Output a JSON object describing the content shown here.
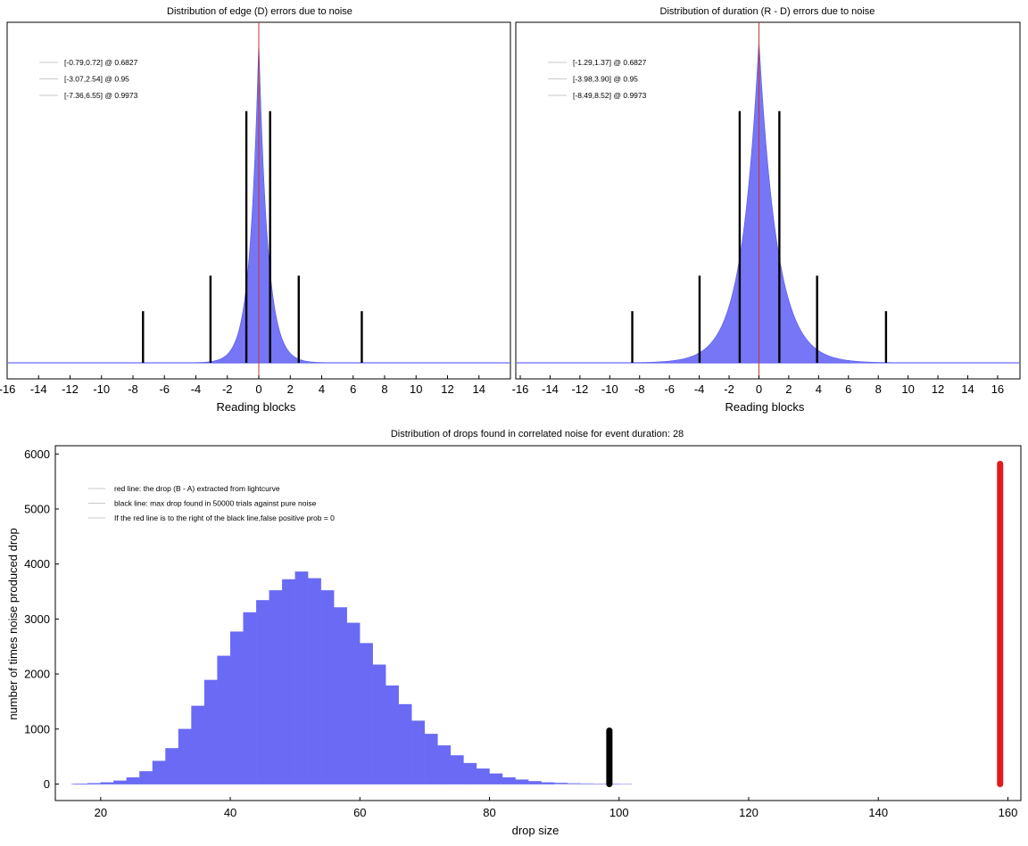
{
  "chart_data": [
    {
      "type": "bar",
      "title": "Distribution of edge (D) errors due to noise",
      "xlabel": "Reading blocks",
      "ylabel": "",
      "xlim": [
        -16,
        16
      ],
      "xticks": [
        "-16",
        "-14",
        "-12",
        "-10",
        "-8",
        "-6",
        "-4",
        "-2",
        "0",
        "2",
        "4",
        "6",
        "8",
        "10",
        "12",
        "14"
      ],
      "histogram": {
        "color": "#6a6af5",
        "center": 0,
        "scale_left": 0.55,
        "scale_right": 0.57
      },
      "center_line": {
        "x": 0,
        "color": "#c0392b"
      },
      "legend": [
        "[-0.79,0.72] @ 0.6827",
        "[-3.07,2.54] @ 0.95",
        "[-7.36,6.55] @ 0.9973"
      ],
      "legend_position": "top-left",
      "intervals": [
        {
          "lo": -0.79,
          "hi": 0.72,
          "prob": 0.6827,
          "level": 0.78
        },
        {
          "lo": -3.07,
          "hi": 2.54,
          "prob": 0.95,
          "level": 0.27
        },
        {
          "lo": -7.36,
          "hi": 6.55,
          "prob": 0.9973,
          "level": 0.16
        }
      ]
    },
    {
      "type": "bar",
      "title": "Distribution of duration (R - D) errors due to noise",
      "xlabel": "Reading blocks",
      "ylabel": "",
      "xlim": [
        -16.3,
        17.5
      ],
      "xticks": [
        "-16",
        "-14",
        "-12",
        "-10",
        "-8",
        "-6",
        "-4",
        "-2",
        "0",
        "2",
        "4",
        "6",
        "8",
        "10",
        "12",
        "14",
        "16"
      ],
      "histogram": {
        "color": "#6a6af5",
        "center": 0,
        "scale_left": 1.15,
        "scale_right": 1.22
      },
      "center_line": {
        "x": 0,
        "color": "#c0392b"
      },
      "legend": [
        "[-1.29,1.37] @ 0.6827",
        "[-3.98,3.90] @ 0.95",
        "[-8.49,8.52] @ 0.9973"
      ],
      "legend_position": "top-left",
      "intervals": [
        {
          "lo": -1.29,
          "hi": 1.37,
          "prob": 0.6827,
          "level": 0.78
        },
        {
          "lo": -3.98,
          "hi": 3.9,
          "prob": 0.95,
          "level": 0.27
        },
        {
          "lo": -8.49,
          "hi": 8.52,
          "prob": 0.9973,
          "level": 0.16
        }
      ]
    },
    {
      "type": "bar",
      "title": "Distribution of drops found in correlated noise for event duration: 28",
      "xlabel": "drop size",
      "ylabel": "number of times noise produced drop",
      "xlim": [
        13,
        162
      ],
      "ylim": [
        -300,
        6150
      ],
      "xticks": [
        20,
        40,
        60,
        80,
        100,
        120,
        140,
        160
      ],
      "yticks": [
        0,
        1000,
        2000,
        3000,
        4000,
        5000,
        6000
      ],
      "bin_width": 2,
      "bins_start": 16,
      "counts": [
        5,
        15,
        30,
        60,
        120,
        230,
        420,
        650,
        1000,
        1420,
        1890,
        2330,
        2770,
        3120,
        3340,
        3520,
        3720,
        3860,
        3740,
        3520,
        3210,
        2930,
        2560,
        2170,
        1790,
        1450,
        1150,
        910,
        700,
        520,
        380,
        280,
        190,
        120,
        80,
        50,
        30,
        20,
        12,
        8,
        5,
        3,
        2
      ],
      "histogram_color": "#6a6af5",
      "black_line": {
        "x": 98.5,
        "height": 970,
        "color": "#000000"
      },
      "red_line": {
        "x": 158.8,
        "height": 5820,
        "color": "#e3191b"
      },
      "legend": [
        "red line: the drop (B - A) extracted from lightcurve",
        "black line: max drop found in 50000 trials against pure noise",
        "If the red line is to the right of the black line,false positive prob = 0"
      ],
      "legend_position": "top-left"
    }
  ]
}
